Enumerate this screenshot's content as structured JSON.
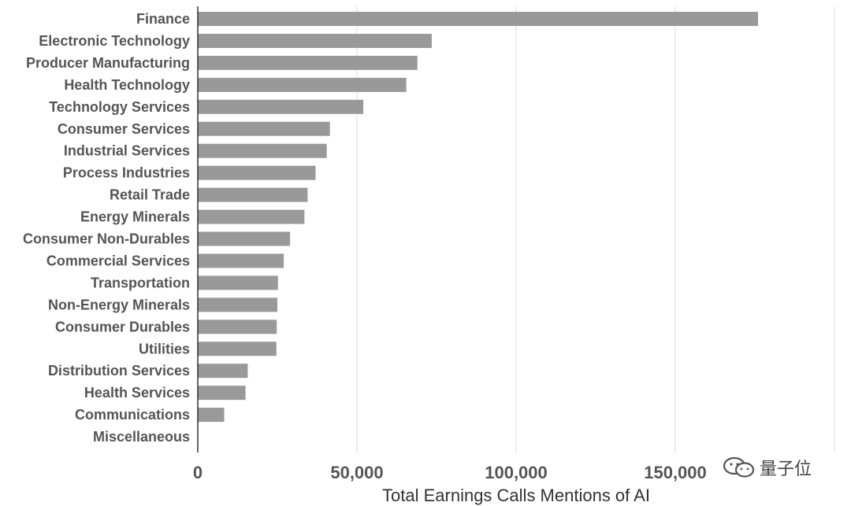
{
  "chart_data": {
    "type": "bar",
    "orientation": "horizontal",
    "categories": [
      "Finance",
      "Electronic Technology",
      "Producer Manufacturing",
      "Health Technology",
      "Technology Services",
      "Consumer Services",
      "Industrial Services",
      "Process Industries",
      "Retail Trade",
      "Energy Minerals",
      "Consumer Non-Durables",
      "Commercial Services",
      "Transportation",
      "Non-Energy Minerals",
      "Consumer Durables",
      "Utilities",
      "Distribution Services",
      "Health Services",
      "Communications",
      "Miscellaneous"
    ],
    "values": [
      176000,
      73500,
      69000,
      65500,
      52000,
      41500,
      40500,
      37000,
      34500,
      33500,
      29000,
      27000,
      25200,
      25000,
      24800,
      24700,
      15700,
      15000,
      8300,
      0
    ],
    "xlabel": "Total Earnings Calls Mentions of AI",
    "ylabel": "",
    "xlim": [
      0,
      200000
    ],
    "xticks": [
      0,
      50000,
      100000,
      150000
    ],
    "xtick_labels": [
      "0",
      "50,000",
      "100,000",
      "150,000"
    ],
    "grid": true,
    "bar_color": "#999999",
    "grid_color": "#dddddd"
  },
  "watermark": {
    "text": "量子位",
    "icon": "wechat-icon"
  }
}
